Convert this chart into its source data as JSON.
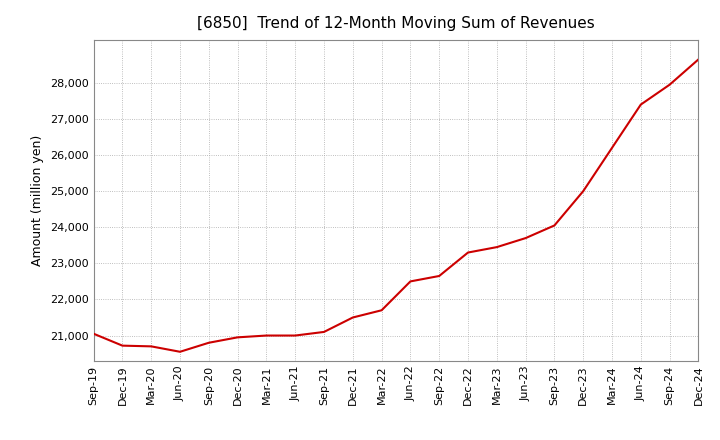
{
  "title": "[6850]  Trend of 12-Month Moving Sum of Revenues",
  "ylabel": "Amount (million yen)",
  "title_fontsize": 11,
  "label_fontsize": 9,
  "tick_fontsize": 8,
  "line_color": "#cc0000",
  "background_color": "#ffffff",
  "grid_color": "#aaaaaa",
  "ylim": [
    20300,
    29200
  ],
  "yticks": [
    21000,
    22000,
    23000,
    24000,
    25000,
    26000,
    27000,
    28000
  ],
  "x_labels": [
    "Sep-19",
    "Dec-19",
    "Mar-20",
    "Jun-20",
    "Sep-20",
    "Dec-20",
    "Mar-21",
    "Jun-21",
    "Sep-21",
    "Dec-21",
    "Mar-22",
    "Jun-22",
    "Sep-22",
    "Dec-22",
    "Mar-23",
    "Jun-23",
    "Sep-23",
    "Dec-23",
    "Mar-24",
    "Jun-24",
    "Sep-24",
    "Dec-24"
  ],
  "values": [
    21050,
    20720,
    20700,
    20550,
    20800,
    20950,
    21000,
    21000,
    21100,
    21500,
    21700,
    22500,
    22650,
    23300,
    23450,
    23700,
    24050,
    25000,
    26200,
    27400,
    27950,
    28650
  ]
}
